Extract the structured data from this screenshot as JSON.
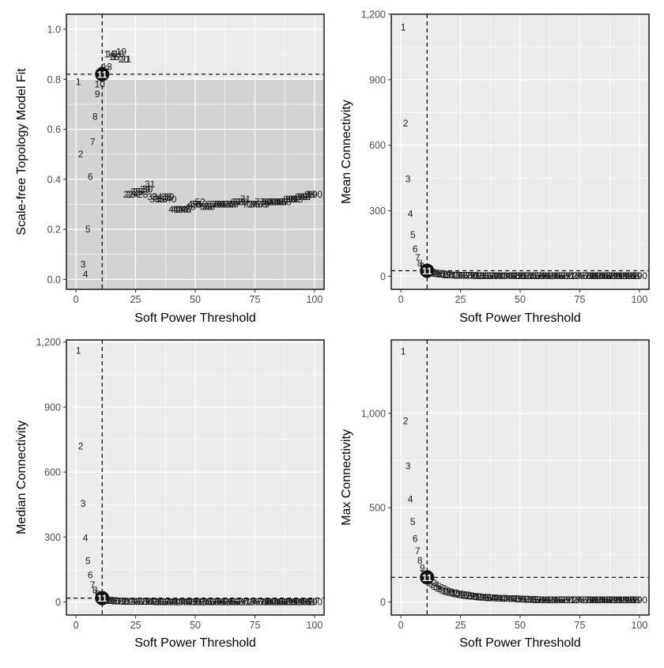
{
  "chart_data": [
    {
      "type": "scatter",
      "xlabel": "Soft Power Threshold",
      "ylabel": "Scale-free Topology Model Fit",
      "xlim": [
        -4,
        104
      ],
      "ylim": [
        -0.04,
        1.06
      ],
      "xticks": [
        0,
        25,
        50,
        75,
        100
      ],
      "xtick_labels": [
        "0",
        "25",
        "50",
        "75",
        "100"
      ],
      "yticks": [
        0,
        0.2,
        0.4,
        0.6,
        0.8,
        1.0
      ],
      "ytick_labels": [
        "0.0",
        "0.2",
        "0.4",
        "0.6",
        "0.8",
        "1.0"
      ],
      "threshold_band": [
        -0.04,
        0.8
      ],
      "hline": 0.82,
      "vline": 11,
      "selected_power": 11,
      "selected_label": "11",
      "x": [
        1,
        2,
        3,
        4,
        5,
        6,
        7,
        8,
        9,
        10,
        11,
        12,
        13,
        14,
        15,
        16,
        17,
        18,
        19,
        20,
        21,
        22,
        23,
        24,
        25,
        26,
        27,
        28,
        29,
        30,
        31,
        32,
        33,
        34,
        35,
        36,
        37,
        38,
        39,
        40,
        41,
        42,
        43,
        44,
        45,
        46,
        47,
        48,
        49,
        50,
        51,
        52,
        53,
        54,
        55,
        56,
        57,
        58,
        59,
        60,
        61,
        62,
        63,
        64,
        65,
        66,
        67,
        68,
        69,
        70,
        71,
        72,
        73,
        74,
        75,
        76,
        77,
        78,
        79,
        80,
        81,
        82,
        83,
        84,
        85,
        86,
        87,
        88,
        89,
        90,
        91,
        92,
        93,
        94,
        95,
        96,
        97,
        98,
        99,
        100
      ],
      "values": [
        0.79,
        0.5,
        0.06,
        0.02,
        0.2,
        0.41,
        0.55,
        0.65,
        0.74,
        0.78,
        0.82,
        0.84,
        0.85,
        0.9,
        0.9,
        0.89,
        0.89,
        0.9,
        0.91,
        0.88,
        0.88,
        0.34,
        0.34,
        0.34,
        0.35,
        0.35,
        0.35,
        0.34,
        0.36,
        0.36,
        0.38,
        0.33,
        0.32,
        0.33,
        0.32,
        0.32,
        0.32,
        0.33,
        0.33,
        0.32,
        0.28,
        0.28,
        0.28,
        0.28,
        0.28,
        0.28,
        0.28,
        0.29,
        0.3,
        0.3,
        0.3,
        0.31,
        0.3,
        0.29,
        0.29,
        0.29,
        0.3,
        0.3,
        0.3,
        0.3,
        0.3,
        0.3,
        0.3,
        0.3,
        0.3,
        0.3,
        0.31,
        0.31,
        0.31,
        0.31,
        0.32,
        0.3,
        0.3,
        0.3,
        0.3,
        0.3,
        0.31,
        0.3,
        0.3,
        0.31,
        0.31,
        0.31,
        0.31,
        0.31,
        0.31,
        0.31,
        0.31,
        0.31,
        0.32,
        0.32,
        0.32,
        0.32,
        0.32,
        0.33,
        0.33,
        0.33,
        0.33,
        0.34,
        0.34,
        0.34
      ]
    },
    {
      "type": "scatter",
      "xlabel": "Soft Power Threshold",
      "ylabel": "Mean Connectivity",
      "xlim": [
        -4,
        104
      ],
      "ylim": [
        -60,
        1200
      ],
      "xticks": [
        0,
        25,
        50,
        75,
        100
      ],
      "xtick_labels": [
        "0",
        "25",
        "50",
        "75",
        "100"
      ],
      "yticks": [
        0,
        300,
        600,
        900,
        1200
      ],
      "ytick_labels": [
        "0",
        "300",
        "600",
        "900",
        "1,200"
      ],
      "hline": 25,
      "vline": 11,
      "selected_power": 11,
      "selected_label": "11",
      "x": [
        1,
        2,
        3,
        4,
        5,
        6,
        7,
        8,
        9,
        10,
        11,
        12,
        13,
        14,
        15,
        16,
        17,
        18,
        19,
        20,
        21,
        22,
        23,
        24,
        25,
        26,
        27,
        28,
        29,
        30,
        31,
        32,
        33,
        34,
        35,
        36,
        37,
        38,
        39,
        40,
        41,
        42,
        43,
        44,
        45,
        46,
        47,
        48,
        49,
        50,
        51,
        52,
        53,
        54,
        55,
        56,
        57,
        58,
        59,
        60,
        61,
        62,
        63,
        64,
        65,
        66,
        67,
        68,
        69,
        70,
        71,
        72,
        73,
        74,
        75,
        76,
        77,
        78,
        79,
        80,
        81,
        82,
        83,
        84,
        85,
        86,
        87,
        88,
        89,
        90,
        91,
        92,
        93,
        94,
        95,
        96,
        97,
        98,
        99,
        100
      ],
      "values": [
        1140,
        700,
        445,
        285,
        190,
        125,
        85,
        60,
        45,
        33,
        25,
        20,
        17,
        14,
        12,
        10,
        9,
        8,
        7,
        6,
        5.5,
        5,
        4.6,
        4.2,
        3.9,
        3.6,
        3.3,
        3.1,
        2.9,
        2.7,
        2.5,
        2.3,
        2.2,
        2.1,
        2,
        1.9,
        1.8,
        1.7,
        1.6,
        1.5,
        1.4,
        1.4,
        1.3,
        1.3,
        1.2,
        1.2,
        1.1,
        1.1,
        1,
        1,
        1,
        1,
        1,
        1,
        1,
        1,
        1,
        1,
        1,
        1,
        1,
        1,
        1,
        1,
        1,
        1,
        1,
        1,
        1,
        1,
        1,
        1,
        1,
        1,
        1,
        1,
        1,
        1,
        1,
        1,
        1,
        1,
        1,
        1,
        1,
        1,
        1,
        1,
        1,
        1,
        1,
        1,
        1,
        1,
        1,
        1,
        1,
        1,
        1,
        1
      ]
    },
    {
      "type": "scatter",
      "xlabel": "Soft Power Threshold",
      "ylabel": "Median Connectivity",
      "xlim": [
        -4,
        104
      ],
      "ylim": [
        -60,
        1210
      ],
      "xticks": [
        0,
        25,
        50,
        75,
        100
      ],
      "xtick_labels": [
        "0",
        "25",
        "50",
        "75",
        "100"
      ],
      "yticks": [
        0,
        300,
        600,
        900,
        1200
      ],
      "ytick_labels": [
        "0",
        "300",
        "600",
        "900",
        "1,200"
      ],
      "hline": 18,
      "vline": 11,
      "selected_power": 11,
      "selected_label": "11",
      "x": [
        1,
        2,
        3,
        4,
        5,
        6,
        7,
        8,
        9,
        10,
        11,
        12,
        13,
        14,
        15,
        16,
        17,
        18,
        19,
        20,
        21,
        22,
        23,
        24,
        25,
        26,
        27,
        28,
        29,
        30,
        31,
        32,
        33,
        34,
        35,
        36,
        37,
        38,
        39,
        40,
        41,
        42,
        43,
        44,
        45,
        46,
        47,
        48,
        49,
        50,
        51,
        52,
        53,
        54,
        55,
        56,
        57,
        58,
        59,
        60,
        61,
        62,
        63,
        64,
        65,
        66,
        67,
        68,
        69,
        70,
        71,
        72,
        73,
        74,
        75,
        76,
        77,
        78,
        79,
        80,
        81,
        82,
        83,
        84,
        85,
        86,
        87,
        88,
        89,
        90,
        91,
        92,
        93,
        94,
        95,
        96,
        97,
        98,
        99,
        100
      ],
      "values": [
        1160,
        720,
        455,
        295,
        190,
        125,
        78,
        55,
        38,
        26,
        18,
        13,
        10,
        8,
        6.5,
        5.5,
        4.5,
        4,
        3.5,
        3,
        2.8,
        2.6,
        2.4,
        2.2,
        2,
        1.9,
        1.8,
        1.7,
        1.6,
        1.5,
        1.4,
        1.3,
        1.2,
        1.1,
        1,
        1,
        1,
        1,
        1,
        1,
        1,
        1,
        1,
        1,
        1,
        1,
        1,
        1,
        1,
        1,
        1,
        1,
        1,
        1,
        1,
        1,
        1,
        1,
        1,
        1,
        1,
        1,
        1,
        1,
        1,
        1,
        1,
        1,
        1,
        1,
        1,
        1,
        1,
        1,
        1,
        1,
        1,
        1,
        1,
        1,
        1,
        1,
        1,
        1,
        1,
        1,
        1,
        1,
        1,
        1,
        1,
        1,
        1,
        1,
        1,
        1,
        1,
        1,
        1,
        1
      ]
    },
    {
      "type": "scatter",
      "xlabel": "Soft Power Threshold",
      "ylabel": "Max Connectivity",
      "xlim": [
        -4,
        104
      ],
      "ylim": [
        -70,
        1390
      ],
      "xticks": [
        0,
        25,
        50,
        75,
        100
      ],
      "xtick_labels": [
        "0",
        "25",
        "50",
        "75",
        "100"
      ],
      "yticks": [
        0,
        500,
        1000
      ],
      "ytick_labels": [
        "0",
        "500",
        "1,000"
      ],
      "hline": 130,
      "vline": 11,
      "selected_power": 11,
      "selected_label": "11",
      "x": [
        1,
        2,
        3,
        4,
        5,
        6,
        7,
        8,
        9,
        10,
        11,
        12,
        13,
        14,
        15,
        16,
        17,
        18,
        19,
        20,
        21,
        22,
        23,
        24,
        25,
        26,
        27,
        28,
        29,
        30,
        31,
        32,
        33,
        34,
        35,
        36,
        37,
        38,
        39,
        40,
        41,
        42,
        43,
        44,
        45,
        46,
        47,
        48,
        49,
        50,
        51,
        52,
        53,
        54,
        55,
        56,
        57,
        58,
        59,
        60,
        61,
        62,
        63,
        64,
        65,
        66,
        67,
        68,
        69,
        70,
        71,
        72,
        73,
        74,
        75,
        76,
        77,
        78,
        79,
        80,
        81,
        82,
        83,
        84,
        85,
        86,
        87,
        88,
        89,
        90,
        91,
        92,
        93,
        94,
        95,
        96,
        97,
        98,
        99,
        100
      ],
      "values": [
        1330,
        960,
        720,
        545,
        425,
        335,
        270,
        220,
        180,
        150,
        130,
        113,
        100,
        90,
        82,
        75,
        69,
        63,
        58,
        54,
        50,
        47,
        44,
        41,
        39,
        37,
        35,
        33,
        31,
        29.5,
        28,
        26.5,
        25,
        24,
        23,
        22,
        21,
        20,
        19.5,
        19,
        18.5,
        18,
        17.5,
        17,
        16.5,
        16,
        15.5,
        15,
        14.5,
        14,
        13.5,
        13,
        12.5,
        12,
        11.5,
        11,
        10.5,
        10,
        10,
        10,
        10,
        10,
        10,
        10,
        10,
        10,
        10,
        10,
        10,
        10,
        10,
        10,
        10,
        10,
        10,
        10,
        10,
        10,
        10,
        10,
        10,
        10,
        10,
        10,
        10,
        10,
        10,
        10,
        10,
        10,
        10,
        10,
        10,
        10,
        10,
        10,
        10,
        10,
        10,
        10
      ]
    }
  ]
}
